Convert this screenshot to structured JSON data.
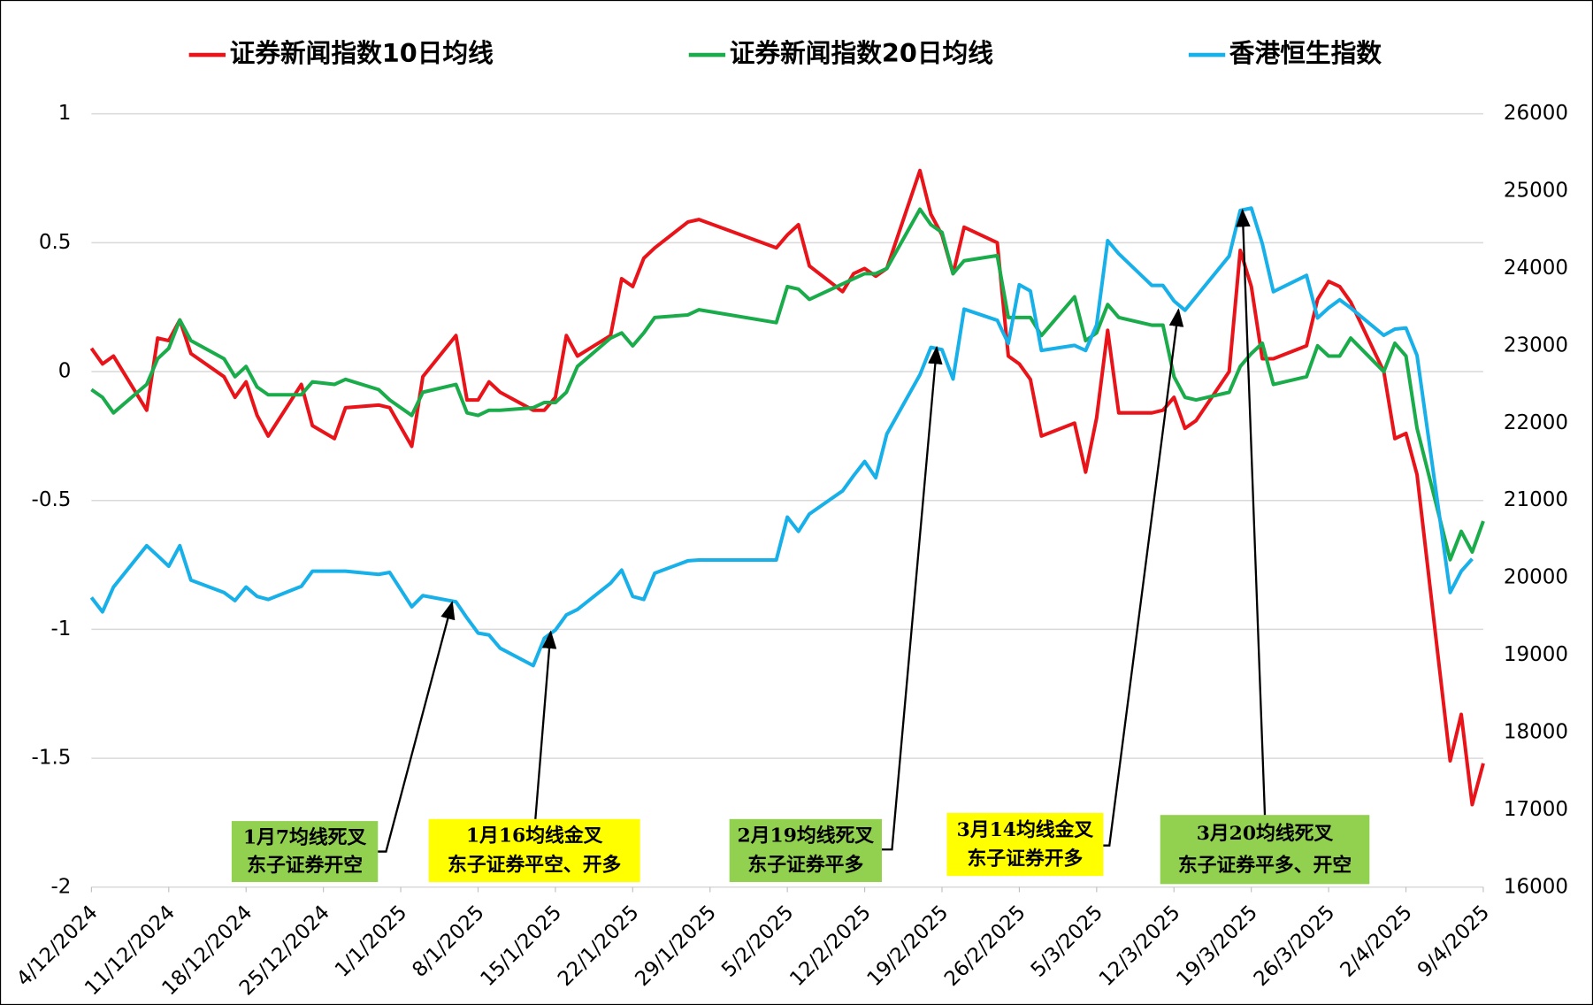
{
  "chart_data": {
    "type": "line",
    "legend": "top",
    "grid": true,
    "x": [
      "4/12/2024",
      "5/12/2024",
      "6/12/2024",
      "9/12/2024",
      "10/12/2024",
      "11/12/2024",
      "12/12/2024",
      "13/12/2024",
      "16/12/2024",
      "17/12/2024",
      "18/12/2024",
      "19/12/2024",
      "20/12/2024",
      "23/12/2024",
      "24/12/2024",
      "26/12/2024",
      "27/12/2024",
      "30/12/2024",
      "31/12/2024",
      "2/1/2025",
      "3/1/2025",
      "6/1/2025",
      "7/1/2025",
      "8/1/2025",
      "9/1/2025",
      "10/1/2025",
      "13/1/2025",
      "14/1/2025",
      "15/1/2025",
      "16/1/2025",
      "17/1/2025",
      "20/1/2025",
      "21/1/2025",
      "22/1/2025",
      "23/1/2025",
      "24/1/2025",
      "27/1/2025",
      "28/1/2025",
      "4/2/2025",
      "5/2/2025",
      "6/2/2025",
      "7/2/2025",
      "10/2/2025",
      "11/2/2025",
      "12/2/2025",
      "13/2/2025",
      "14/2/2025",
      "17/2/2025",
      "18/2/2025",
      "19/2/2025",
      "20/2/2025",
      "21/2/2025",
      "24/2/2025",
      "25/2/2025",
      "26/2/2025",
      "27/2/2025",
      "28/2/2025",
      "3/3/2025",
      "4/3/2025",
      "5/3/2025",
      "6/3/2025",
      "7/3/2025",
      "10/3/2025",
      "11/3/2025",
      "12/3/2025",
      "13/3/2025",
      "14/3/2025",
      "17/3/2025",
      "18/3/2025",
      "19/3/2025",
      "20/3/2025",
      "21/3/2025",
      "24/3/2025",
      "25/3/2025",
      "26/3/2025",
      "27/3/2025",
      "28/3/2025",
      "31/3/2025",
      "1/4/2025",
      "2/4/2025",
      "3/4/2025",
      "6/4/2025",
      "7/4/2025",
      "8/4/2025",
      "9/4/2025"
    ],
    "xlim": [
      "4/12/2024",
      "9/4/2025"
    ],
    "xticks": [
      "4/12/2024",
      "11/12/2024",
      "18/12/2024",
      "25/12/2024",
      "1/1/2025",
      "8/1/2025",
      "15/1/2025",
      "22/1/2025",
      "29/1/2025",
      "5/2/2025",
      "12/2/2025",
      "19/2/2025",
      "26/2/2025",
      "5/3/2025",
      "12/3/2025",
      "19/3/2025",
      "26/3/2025",
      "2/4/2025",
      "9/4/2025"
    ],
    "ylim": [
      -2,
      1
    ],
    "yticks": [
      -2,
      -1.5,
      -1,
      -0.5,
      0,
      0.5,
      1
    ],
    "y2lim": [
      16000,
      26000
    ],
    "y2ticks": [
      16000,
      17000,
      18000,
      19000,
      20000,
      21000,
      22000,
      23000,
      24000,
      25000,
      26000
    ],
    "series": [
      {
        "name": "证券新闻指数10日均线",
        "color": "#e8141a",
        "values": [
          0.09,
          0.03,
          0.06,
          -0.15,
          0.13,
          0.12,
          0.2,
          0.07,
          -0.02,
          -0.1,
          -0.04,
          -0.17,
          -0.25,
          -0.05,
          -0.21,
          -0.26,
          -0.14,
          -0.13,
          -0.14,
          -0.29,
          -0.02,
          0.14,
          -0.11,
          -0.11,
          -0.04,
          -0.08,
          -0.15,
          -0.15,
          -0.1,
          0.14,
          0.06,
          0.14,
          0.36,
          0.33,
          0.44,
          0.48,
          0.58,
          0.59,
          0.48,
          0.53,
          0.57,
          0.41,
          0.31,
          0.38,
          0.4,
          0.37,
          0.4,
          0.78,
          0.61,
          0.53,
          0.38,
          0.56,
          0.5,
          0.06,
          0.03,
          -0.03,
          -0.25,
          -0.2,
          -0.39,
          -0.18,
          0.16,
          -0.16,
          -0.16,
          -0.15,
          -0.1,
          -0.22,
          -0.19,
          0.0,
          0.47,
          0.33,
          0.05,
          0.05,
          0.1,
          0.28,
          0.35,
          0.33,
          0.27,
          0.0,
          -0.26,
          -0.24,
          -0.4,
          -1.51,
          -1.33,
          -1.68,
          -1.52
        ]
      },
      {
        "name": "证券新闻指数20日均线",
        "color": "#1aab4b",
        "values": [
          -0.07,
          -0.1,
          -0.16,
          -0.05,
          0.05,
          0.09,
          0.2,
          0.12,
          0.05,
          -0.02,
          0.02,
          -0.06,
          -0.09,
          -0.09,
          -0.04,
          -0.05,
          -0.03,
          -0.07,
          -0.11,
          -0.17,
          -0.08,
          -0.05,
          -0.16,
          -0.17,
          -0.15,
          -0.15,
          -0.14,
          -0.12,
          -0.12,
          -0.08,
          0.02,
          0.13,
          0.15,
          0.1,
          0.15,
          0.21,
          0.22,
          0.24,
          0.19,
          0.33,
          0.32,
          0.28,
          0.34,
          0.36,
          0.38,
          0.38,
          0.4,
          0.63,
          0.57,
          0.54,
          0.38,
          0.43,
          0.45,
          0.21,
          0.21,
          0.21,
          0.14,
          0.29,
          0.12,
          0.15,
          0.26,
          0.21,
          0.18,
          0.18,
          -0.02,
          -0.1,
          -0.11,
          -0.08,
          0.02,
          0.07,
          0.11,
          -0.05,
          -0.02,
          0.1,
          0.06,
          0.06,
          0.13,
          0.0,
          0.11,
          0.06,
          -0.22,
          -0.73,
          -0.62,
          -0.7,
          -0.58
        ]
      },
      {
        "name": "香港恒生指数",
        "color": "#17b0e8",
        "axis": "y2",
        "values": [
          19745,
          19560,
          19880,
          20415,
          20285,
          20150,
          20415,
          19970,
          19810,
          19705,
          19880,
          19760,
          19720,
          19890,
          20085,
          20085,
          20085,
          20045,
          20070,
          19625,
          19770,
          19690,
          19480,
          19285,
          19260,
          19090,
          18865,
          19220,
          19325,
          19520,
          19590,
          19930,
          20100,
          19760,
          19720,
          20060,
          20220,
          20230,
          20230,
          20785,
          20600,
          20825,
          21125,
          21320,
          21505,
          21295,
          21860,
          22625,
          22980,
          22950,
          22570,
          23475,
          23330,
          23030,
          23790,
          23710,
          22940,
          23005,
          22940,
          23270,
          24360,
          24190,
          23780,
          23780,
          23580,
          23460,
          23635,
          24160,
          24750,
          24780,
          24320,
          23700,
          23910,
          23360,
          23490,
          23595,
          23490,
          23135,
          23215,
          23230,
          22875,
          19810,
          20085,
          20245,
          null
        ]
      }
    ],
    "annotations": [
      {
        "lines": [
          "1月7均线死叉",
          "东子证券开空"
        ],
        "color": "#92d050"
      },
      {
        "lines": [
          "1月16均线金叉",
          "东子证券平空、开多"
        ],
        "color": "#ffff00"
      },
      {
        "lines": [
          "2月19均线死叉",
          "东子证券平多"
        ],
        "color": "#92d050"
      },
      {
        "lines": [
          "3月14均线金叉",
          "东子证券开多"
        ],
        "color": "#ffff00"
      },
      {
        "lines": [
          "3月20均线死叉",
          "东子证券平多、开空"
        ],
        "color": "#92d050"
      }
    ]
  }
}
